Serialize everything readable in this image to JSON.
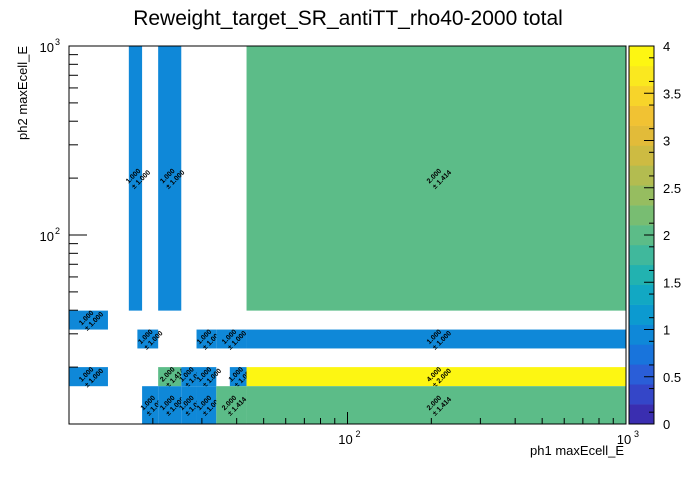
{
  "chart_data": {
    "type": "heatmap",
    "title": "Reweight_target_SR_antiTT_rho40-2000 total",
    "xlabel": "ph1 maxEcell_E",
    "ylabel": "ph2 maxEcell_E",
    "x_scale": "log",
    "y_scale": "log",
    "xlim": [
      10,
      1000
    ],
    "ylim": [
      10,
      1000
    ],
    "x_major_ticks": [
      {
        "value": 100,
        "base": "10",
        "exp": "2"
      },
      {
        "value": 1000,
        "base": "10",
        "exp": "3"
      }
    ],
    "y_major_ticks": [
      {
        "value": 100,
        "base": "10",
        "exp": "2"
      },
      {
        "value": 1000,
        "base": "10",
        "exp": "3"
      }
    ],
    "colorbar": {
      "min": 0,
      "max": 4,
      "ticks": [
        "0",
        "0.5",
        "1",
        "1.5",
        "2",
        "2.5",
        "3",
        "3.5",
        "4"
      ],
      "palette": [
        "#3a2eb0",
        "#3446c8",
        "#2a5ed8",
        "#1874dc",
        "#0f88d8",
        "#0c9ad0",
        "#12a8c3",
        "#22b2b0",
        "#40b89c",
        "#5cbc88",
        "#78bd72",
        "#96bd60",
        "#b3bc50",
        "#cdbb42",
        "#e2bb39",
        "#f1c233",
        "#f7d42a",
        "#fae81f",
        "#fdf612"
      ]
    },
    "cells": [
      {
        "x": [
          16.4,
          18.3
        ],
        "y": [
          39.8,
          1000
        ],
        "value": 1.0,
        "label": "1.000",
        "error": "± 1.000"
      },
      {
        "x": [
          20.9,
          25.3
        ],
        "y": [
          39.8,
          1000
        ],
        "value": 1.0,
        "label": "1.000",
        "error": "± 1.000"
      },
      {
        "x": [
          43.4,
          1000
        ],
        "y": [
          39.8,
          1000
        ],
        "value": 2.0,
        "label": "2.000",
        "error": "± 1.414"
      },
      {
        "x": [
          10,
          13.8
        ],
        "y": [
          31.6,
          39.8
        ],
        "value": 1.0,
        "label": "1.000",
        "error": "± 1.000"
      },
      {
        "x": [
          17.6,
          20.9
        ],
        "y": [
          25.1,
          31.6
        ],
        "value": 1.0,
        "label": "1.000",
        "error": "± 1.000"
      },
      {
        "x": [
          28.7,
          33.8
        ],
        "y": [
          25.1,
          31.6
        ],
        "value": 1.0,
        "label": "1.000",
        "error": "± 1.000"
      },
      {
        "x": [
          33.8,
          43.4
        ],
        "y": [
          25.1,
          31.6
        ],
        "value": 1.0,
        "label": "1.000",
        "error": "± 1.000"
      },
      {
        "x": [
          43.4,
          1000
        ],
        "y": [
          25.1,
          31.6
        ],
        "value": 1.0,
        "label": "1.000",
        "error": "± 1.000"
      },
      {
        "x": [
          10,
          13.8
        ],
        "y": [
          15.85,
          20
        ],
        "value": 1.0,
        "label": "1.000",
        "error": "± 1.000"
      },
      {
        "x": [
          20.9,
          25.3
        ],
        "y": [
          15.85,
          20
        ],
        "value": 2.0,
        "label": "2.000",
        "error": "± 1.414"
      },
      {
        "x": [
          25.3,
          28.7
        ],
        "y": [
          15.85,
          20
        ],
        "value": 1.0,
        "label": "1.000",
        "error": "± 1.000"
      },
      {
        "x": [
          28.7,
          33.8
        ],
        "y": [
          15.85,
          20
        ],
        "value": 1.0,
        "label": "1.000",
        "error": "± 1.000"
      },
      {
        "x": [
          37.8,
          43.4
        ],
        "y": [
          15.85,
          20
        ],
        "value": 1.0,
        "label": "1.000",
        "error": "± 1.000"
      },
      {
        "x": [
          43.4,
          1000
        ],
        "y": [
          15.85,
          20
        ],
        "value": 4.0,
        "label": "4.000",
        "error": "± 2.000"
      },
      {
        "x": [
          18.3,
          20.9
        ],
        "y": [
          10,
          15.85
        ],
        "value": 1.0,
        "label": "1.000",
        "error": "± 1.000"
      },
      {
        "x": [
          20.9,
          25.3
        ],
        "y": [
          10,
          15.85
        ],
        "value": 1.0,
        "label": "1.000",
        "error": "± 1.000"
      },
      {
        "x": [
          25.3,
          28.7
        ],
        "y": [
          10,
          15.85
        ],
        "value": 1.0,
        "label": "1.000",
        "error": "± 1.000"
      },
      {
        "x": [
          28.7,
          33.8
        ],
        "y": [
          10,
          15.85
        ],
        "value": 1.0,
        "label": "1.000",
        "error": "± 1.000"
      },
      {
        "x": [
          33.8,
          43.4
        ],
        "y": [
          10,
          15.85
        ],
        "value": 2.0,
        "label": "2.000",
        "error": "± 1.414"
      },
      {
        "x": [
          43.4,
          1000
        ],
        "y": [
          10,
          15.85
        ],
        "value": 2.0,
        "label": "2.000",
        "error": "± 1.414"
      }
    ]
  }
}
